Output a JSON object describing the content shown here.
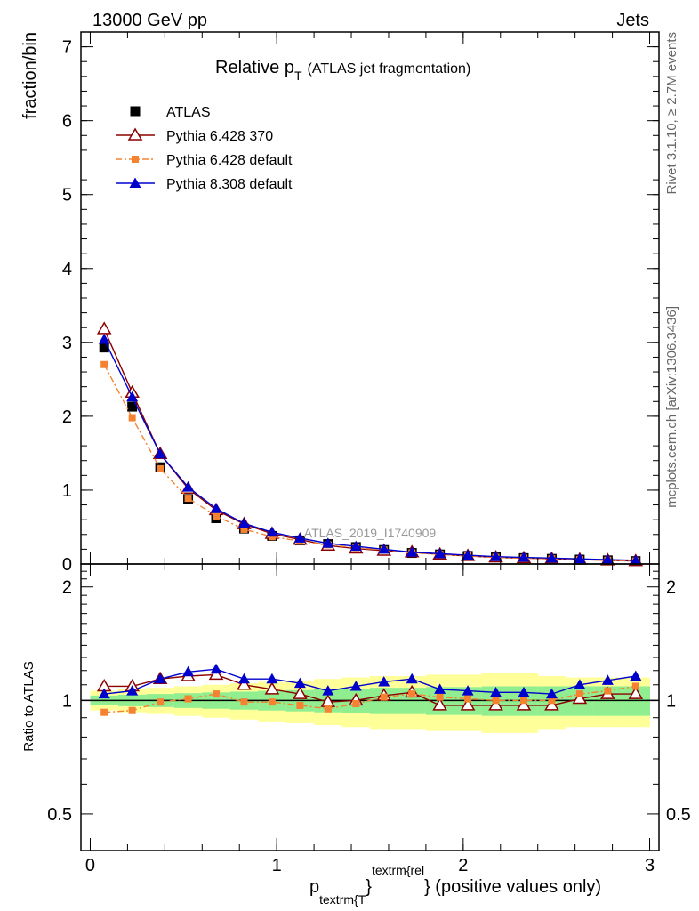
{
  "header": {
    "left": "13000 GeV pp",
    "right": "Jets"
  },
  "side_labels": {
    "rivet": "Rivet 3.1.10, ≥ 2.7M events",
    "mcplots": "mcplots.cern.ch [arXiv:1306.3436]"
  },
  "watermark": "ATLAS_2019_I1740909",
  "colors": {
    "atlas": "#000000",
    "py6_370": "#8b0000",
    "py6_default": "#f58231",
    "py8_default": "#0000cd",
    "band_inner": "#90ee90",
    "band_outer": "#ffff99"
  },
  "chart_data": [
    {
      "type": "scatter",
      "title_main": "Relative p",
      "title_sub": "T",
      "title_rest": "(ATLAS jet fragmentation)",
      "ylabel": "fraction/bin",
      "xlim": [
        -0.05,
        3.05
      ],
      "ylim": [
        0,
        7.2
      ],
      "yticks": [
        0,
        1,
        2,
        3,
        4,
        5,
        6,
        7
      ],
      "yticklabels": [
        "0",
        "1",
        "2",
        "3",
        "4",
        "5",
        "6",
        "7"
      ],
      "legend_position": "top-left",
      "x": [
        0.075,
        0.225,
        0.375,
        0.525,
        0.675,
        0.825,
        0.975,
        1.125,
        1.275,
        1.425,
        1.575,
        1.725,
        1.875,
        2.025,
        2.175,
        2.325,
        2.475,
        2.625,
        2.775,
        2.925
      ],
      "series": [
        {
          "name": "ATLAS",
          "style": "square",
          "values": [
            2.93,
            2.13,
            1.31,
            0.88,
            0.62,
            0.48,
            0.38,
            0.32,
            0.27,
            0.23,
            0.19,
            0.15,
            0.13,
            0.11,
            0.09,
            0.08,
            0.07,
            0.06,
            0.05,
            0.04
          ]
        },
        {
          "name": "Pythia 6.428 370",
          "style": "open-triangle",
          "values": [
            3.18,
            2.32,
            1.49,
            1.02,
            0.73,
            0.54,
            0.41,
            0.33,
            0.25,
            0.21,
            0.18,
            0.16,
            0.13,
            0.11,
            0.09,
            0.08,
            0.07,
            0.06,
            0.05,
            0.04
          ]
        },
        {
          "name": "Pythia 6.428 default",
          "style": "small-square-dashdot",
          "values": [
            2.7,
            1.98,
            1.29,
            0.89,
            0.65,
            0.47,
            0.37,
            0.31,
            0.26,
            0.22,
            0.19,
            0.15,
            0.13,
            0.11,
            0.09,
            0.08,
            0.07,
            0.06,
            0.05,
            0.04
          ]
        },
        {
          "name": "Pythia 8.308 default",
          "style": "filled-triangle",
          "values": [
            3.04,
            2.26,
            1.49,
            1.04,
            0.75,
            0.55,
            0.43,
            0.35,
            0.28,
            0.24,
            0.2,
            0.16,
            0.14,
            0.12,
            0.1,
            0.09,
            0.08,
            0.07,
            0.06,
            0.05
          ]
        }
      ]
    },
    {
      "type": "line",
      "ylabel": "Ratio to ATLAS",
      "xlabel_main": "p",
      "xlabel_sub": "textrm{T",
      "xlabel_sup": "textrm{rel",
      "xlabel_brace": "}",
      "xlabel_rest": "} (positive values only)",
      "xlim": [
        -0.05,
        3.05
      ],
      "ylim": [
        0.4,
        2.3
      ],
      "log_y": true,
      "yticks": [
        0.5,
        1,
        2
      ],
      "yticklabels": [
        "0.5",
        "1",
        "2"
      ],
      "xticks": [
        0,
        1,
        2,
        3
      ],
      "xticklabels": [
        "0",
        "1",
        "2",
        "3"
      ],
      "reference_line": 1.0,
      "x": [
        0.075,
        0.225,
        0.375,
        0.525,
        0.675,
        0.825,
        0.975,
        1.125,
        1.275,
        1.425,
        1.575,
        1.725,
        1.875,
        2.025,
        2.175,
        2.325,
        2.475,
        2.625,
        2.775,
        2.925
      ],
      "band_inner": [
        0.03,
        0.035,
        0.04,
        0.045,
        0.05,
        0.055,
        0.06,
        0.065,
        0.07,
        0.075,
        0.08,
        0.08,
        0.085,
        0.085,
        0.09,
        0.09,
        0.09,
        0.09,
        0.09,
        0.09
      ],
      "band_outer": [
        0.06,
        0.07,
        0.08,
        0.09,
        0.1,
        0.11,
        0.12,
        0.13,
        0.14,
        0.15,
        0.16,
        0.16,
        0.17,
        0.17,
        0.18,
        0.18,
        0.16,
        0.15,
        0.15,
        0.15
      ],
      "series": [
        {
          "name": "Pythia 6.428 370",
          "style": "open-triangle",
          "values": [
            1.09,
            1.09,
            1.14,
            1.16,
            1.17,
            1.1,
            1.07,
            1.04,
            0.99,
            1.0,
            1.03,
            1.05,
            0.97,
            0.97,
            0.97,
            0.97,
            0.97,
            1.01,
            1.04,
            1.04
          ]
        },
        {
          "name": "Pythia 6.428 default",
          "style": "small-square-dashdot",
          "values": [
            0.93,
            0.94,
            0.99,
            1.01,
            1.04,
            0.99,
            0.99,
            0.97,
            0.95,
            0.98,
            1.02,
            1.04,
            1.02,
            1.01,
            1.0,
            1.0,
            1.0,
            1.04,
            1.06,
            1.09
          ]
        },
        {
          "name": "Pythia 8.308 default",
          "style": "filled-triangle",
          "values": [
            1.04,
            1.06,
            1.14,
            1.19,
            1.21,
            1.14,
            1.14,
            1.11,
            1.06,
            1.09,
            1.12,
            1.14,
            1.07,
            1.06,
            1.05,
            1.05,
            1.04,
            1.1,
            1.13,
            1.16
          ]
        }
      ]
    }
  ]
}
